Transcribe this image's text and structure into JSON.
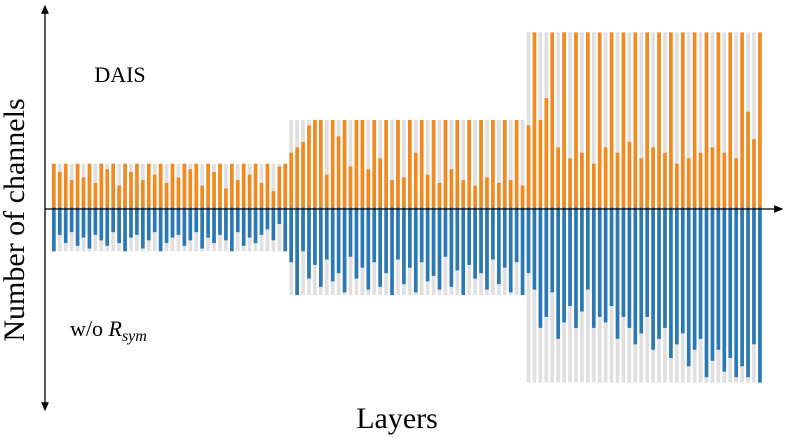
{
  "chart_data": {
    "type": "bar",
    "ylabel": "Number of channels",
    "xlabel": "Layers",
    "ylim": [
      -74,
      74
    ],
    "capacity_color": "#e0e0e0",
    "capacity": [
      16,
      16,
      16,
      16,
      16,
      16,
      16,
      16,
      16,
      16,
      16,
      16,
      16,
      16,
      16,
      16,
      16,
      16,
      16,
      16,
      16,
      16,
      16,
      16,
      16,
      16,
      16,
      16,
      16,
      16,
      16,
      16,
      16,
      16,
      16,
      16,
      16,
      16,
      16,
      16,
      32,
      32,
      32,
      32,
      32,
      32,
      32,
      32,
      32,
      32,
      32,
      32,
      32,
      32,
      32,
      32,
      32,
      32,
      32,
      32,
      32,
      32,
      32,
      32,
      32,
      32,
      32,
      32,
      32,
      32,
      32,
      32,
      32,
      32,
      32,
      32,
      32,
      32,
      32,
      32,
      64,
      64,
      64,
      64,
      64,
      64,
      64,
      64,
      64,
      64,
      64,
      64,
      64,
      64,
      64,
      64,
      64,
      64,
      64,
      64,
      64,
      64,
      64,
      64,
      64,
      64,
      64,
      64,
      64,
      64,
      64,
      64,
      64,
      64,
      64,
      64,
      64,
      64,
      64,
      64
    ],
    "series": [
      {
        "name": "DAIS",
        "side": "above",
        "color": "#f28a1f",
        "values": [
          16,
          13,
          16,
          10,
          16,
          11,
          16,
          9,
          16,
          14,
          16,
          8,
          16,
          13,
          16,
          10,
          16,
          12,
          16,
          9,
          16,
          11,
          16,
          14,
          16,
          8,
          16,
          13,
          16,
          7,
          16,
          10,
          16,
          12,
          16,
          9,
          16,
          6,
          15,
          16,
          20,
          22,
          24,
          30,
          32,
          32,
          12,
          32,
          26,
          32,
          15,
          32,
          32,
          14,
          32,
          18,
          32,
          10,
          32,
          11,
          32,
          20,
          32,
          12,
          32,
          9,
          32,
          14,
          32,
          10,
          32,
          8,
          32,
          11,
          32,
          9,
          32,
          10,
          32,
          8,
          30,
          64,
          32,
          40,
          64,
          22,
          64,
          18,
          64,
          20,
          64,
          16,
          64,
          22,
          64,
          20,
          64,
          24,
          64,
          18,
          64,
          22,
          64,
          20,
          64,
          16,
          64,
          18,
          64,
          20,
          64,
          22,
          64,
          20,
          64,
          18,
          64,
          35,
          25,
          64
        ]
      },
      {
        "name": "w/o",
        "name_symbol": "R",
        "name_subscript": "sym",
        "side": "below",
        "color": "#2a78b4",
        "values": [
          16,
          10,
          13,
          9,
          14,
          11,
          15,
          10,
          12,
          14,
          9,
          13,
          16,
          11,
          10,
          15,
          12,
          9,
          16,
          13,
          11,
          10,
          14,
          12,
          9,
          15,
          11,
          13,
          10,
          12,
          16,
          9,
          14,
          11,
          13,
          10,
          8,
          12,
          6,
          16,
          20,
          32,
          16,
          26,
          21,
          29,
          19,
          27,
          24,
          31,
          18,
          26,
          22,
          30,
          20,
          29,
          24,
          32,
          19,
          28,
          22,
          31,
          20,
          27,
          25,
          30,
          18,
          29,
          23,
          32,
          21,
          26,
          24,
          30,
          19,
          28,
          22,
          31,
          20,
          32,
          24,
          30,
          44,
          40,
          31,
          48,
          42,
          36,
          44,
          38,
          30,
          44,
          40,
          42,
          36,
          48,
          40,
          44,
          50,
          46,
          40,
          52,
          48,
          44,
          55,
          50,
          46,
          58,
          52,
          48,
          62,
          56,
          52,
          60,
          55,
          62,
          58,
          62,
          50,
          64
        ]
      }
    ]
  }
}
